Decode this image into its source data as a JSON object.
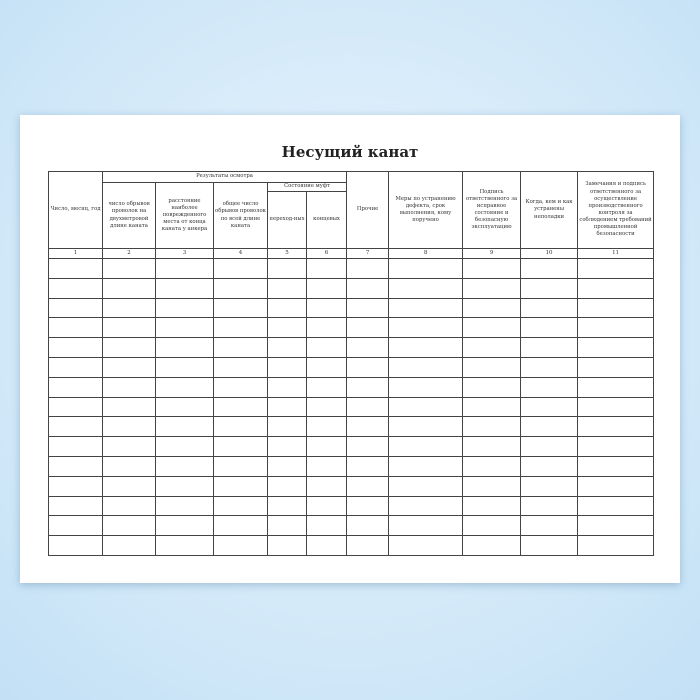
{
  "title": "Несущий канат",
  "headers": {
    "date": "Число, месяц, год",
    "inspection_group": "Результаты осмотра",
    "broken_wires_2m": "число обрывов проволок на двухметровой длине каната",
    "distance_damaged": "расстояние наиболее поврежденного места от конца каната у анкера",
    "total_broken": "общее число обрывов проволок по всей длине каната",
    "couplings_group": "Состояние муфт",
    "transitional": "переход-ных",
    "end": "концевых",
    "other": "Прочие",
    "measures": "Меры по устранению дефекта, срок выполнения, кому поручено",
    "signature": "Подпись ответственного за исправное состояние и безопасную эксплуатацию",
    "fixed": "Когда, кем и как устранены неполадки",
    "remarks": "Замечания и подпись ответственного за осуществление производственного контроля за соблюдением требований промышленной безопасности"
  },
  "column_numbers": [
    "1",
    "2",
    "3",
    "4",
    "5",
    "6",
    "7",
    "8",
    "9",
    "10",
    "11"
  ],
  "empty_rows": 15
}
